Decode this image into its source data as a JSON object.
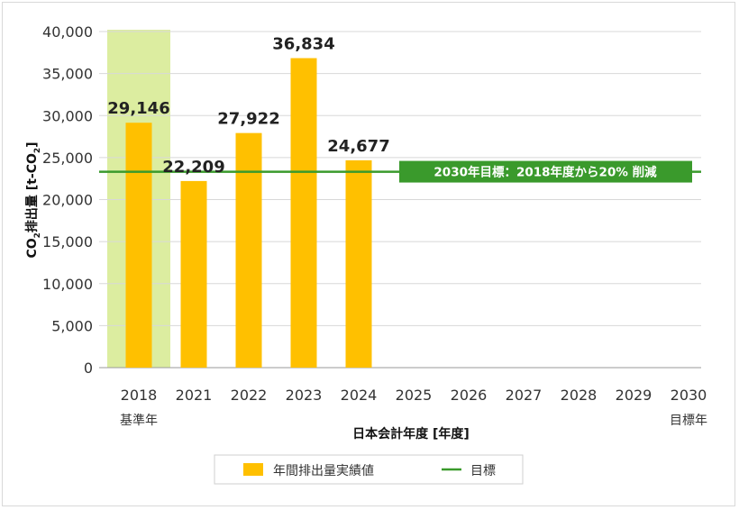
{
  "colors": {
    "bar": "#FFC000",
    "target_line": "#3A9A2C",
    "base_year_highlight": "#DCEDA0",
    "grid": "#D8D8D8"
  },
  "chart_data": {
    "type": "bar",
    "categories": [
      "2018",
      "2021",
      "2022",
      "2023",
      "2024",
      "2025",
      "2026",
      "2027",
      "2028",
      "2029",
      "2030"
    ],
    "category_sublabels": {
      "2018": "基準年",
      "2030": "目標年"
    },
    "series": [
      {
        "name": "年間排出量実績値",
        "values": [
          29146,
          22209,
          27922,
          36834,
          24677,
          null,
          null,
          null,
          null,
          null,
          null
        ]
      }
    ],
    "data_labels": [
      "29,146",
      "22,209",
      "27,922",
      "36,834",
      "24,677"
    ],
    "target": {
      "name": "目標",
      "value": 23317,
      "label": "2030年目標：2018年度から20% 削減"
    },
    "xlabel": "日本会計年度 [年度]",
    "ylabel_parts": [
      "CO",
      "2",
      "排出量 [t-CO",
      "2",
      "]"
    ],
    "ylim": [
      0,
      40000
    ],
    "yticks": [
      "0",
      "5,000",
      "10,000",
      "15,000",
      "20,000",
      "25,000",
      "30,000",
      "35,000",
      "40,000"
    ],
    "highlight_category": "2018",
    "grid": "horizontal",
    "legend_position": "bottom-center"
  }
}
